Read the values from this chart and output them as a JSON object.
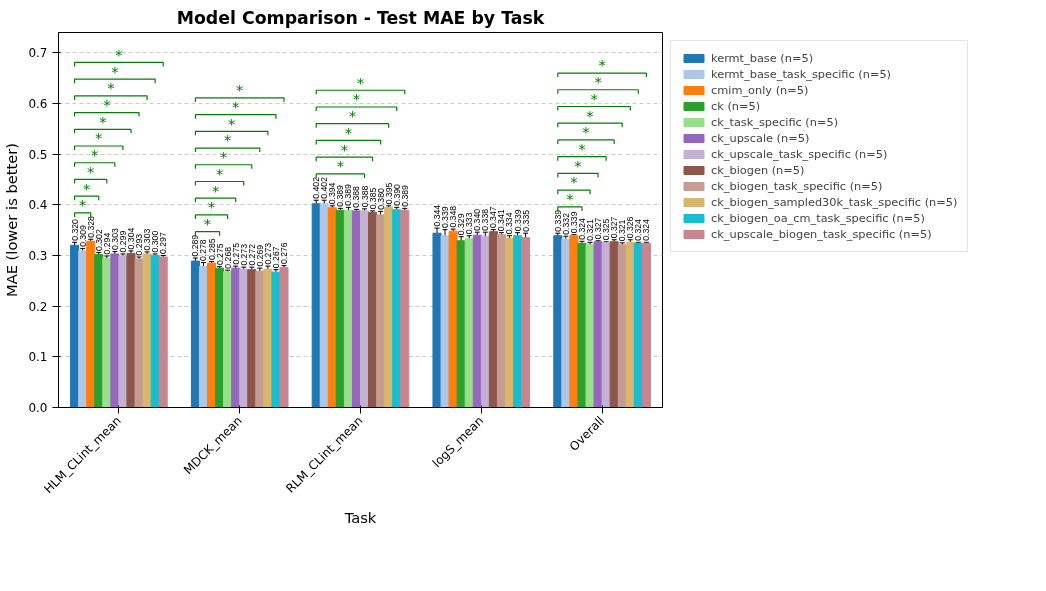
{
  "chart_data": {
    "type": "bar",
    "title": "Model Comparison - Test MAE by Task",
    "xlabel": "Task",
    "ylabel": "MAE (lower is better)",
    "categories": [
      "HLM_CLint_mean",
      "MDCK_mean",
      "RLM_CLint_mean",
      "logS_mean",
      "Overall"
    ],
    "ylim": [
      0,
      0.74
    ],
    "yticks": [
      {
        "value": 0,
        "label": "0.0"
      },
      0.1,
      0.2,
      0.3,
      0.4,
      0.5,
      0.6,
      0.7
    ],
    "grid": "y",
    "legend": "right",
    "series": [
      {
        "name": "kermt_base (n=5)",
        "color": "#1f77b4",
        "values": [
          0.32,
          0.289,
          0.402,
          0.344,
          0.339
        ],
        "value_labels": [
          "0.320",
          "0.289",
          "0.402",
          "0.344",
          "0.339"
        ],
        "errors": [
          0.006,
          0.006,
          0.007,
          0.01,
          0.005
        ]
      },
      {
        "name": "kermt_base_task_specific (n=5)",
        "color": "#aec7e8",
        "values": [
          0.309,
          0.278,
          0.402,
          0.339,
          0.332
        ],
        "value_labels": [
          "0.309",
          "0.278",
          "0.402",
          "0.339",
          "0.332"
        ],
        "errors": [
          0.005,
          0.008,
          0.007,
          0.012,
          0.006
        ]
      },
      {
        "name": "cmim_only (n=5)",
        "color": "#ff7f0e",
        "values": [
          0.328,
          0.285,
          0.394,
          0.348,
          0.339
        ],
        "value_labels": [
          "0.328",
          "0.285",
          "0.394",
          "0.348",
          "0.339"
        ],
        "errors": [
          0.004,
          0.003,
          0.004,
          0.004,
          0.002
        ]
      },
      {
        "name": "ck (n=5)",
        "color": "#2ca02c",
        "values": [
          0.302,
          0.275,
          0.389,
          0.329,
          0.324
        ],
        "value_labels": [
          "0.302",
          "0.275",
          "0.389",
          "0.329",
          "0.324"
        ],
        "errors": [
          0.004,
          0.003,
          0.004,
          0.008,
          0.004
        ]
      },
      {
        "name": "ck_task_specific (n=5)",
        "color": "#98df8a",
        "values": [
          0.294,
          0.268,
          0.389,
          0.333,
          0.321
        ],
        "value_labels": [
          "0.294",
          "0.268",
          "0.389",
          "0.333",
          "0.321"
        ],
        "errors": [
          0.005,
          0.003,
          0.006,
          0.006,
          0.005
        ]
      },
      {
        "name": "ck_upscale (n=5)",
        "color": "#9467bd",
        "values": [
          0.303,
          0.275,
          0.388,
          0.34,
          0.327
        ],
        "value_labels": [
          "0.303",
          "0.275",
          "0.388",
          "0.340",
          "0.327"
        ],
        "errors": [
          0.005,
          0.004,
          0.003,
          0.006,
          0.002
        ]
      },
      {
        "name": "ck_upscale_task_specific (n=5)",
        "color": "#c5b0d5",
        "values": [
          0.299,
          0.273,
          0.388,
          0.338,
          0.325
        ],
        "value_labels": [
          "0.299",
          "0.273",
          "0.388",
          "0.338",
          "0.325"
        ],
        "errors": [
          0.004,
          0.004,
          0.004,
          0.008,
          0.002
        ]
      },
      {
        "name": "ck_biogen (n=5)",
        "color": "#8c564b",
        "values": [
          0.304,
          0.272,
          0.385,
          0.347,
          0.327
        ],
        "value_labels": [
          "0.304",
          "0.272",
          "0.385",
          "0.347",
          "0.327"
        ],
        "errors": [
          0.005,
          0.005,
          0.003,
          0.004,
          0.004
        ]
      },
      {
        "name": "ck_biogen_task_specific (n=5)",
        "color": "#c49c94",
        "values": [
          0.293,
          0.269,
          0.38,
          0.341,
          0.321
        ],
        "value_labels": [
          "0.293",
          "0.269",
          "0.380",
          "0.341",
          "0.321"
        ],
        "errors": [
          0.004,
          0.006,
          0.007,
          0.004,
          0.004
        ]
      },
      {
        "name": "ck_biogen_sampled30k_task_specific (n=5)",
        "color": "#dbb56b",
        "values": [
          0.303,
          0.273,
          0.395,
          0.334,
          0.326
        ],
        "value_labels": [
          "0.303",
          "0.273",
          "0.395",
          "0.334",
          "0.326"
        ],
        "errors": [
          0.004,
          0.006,
          0.003,
          0.005,
          0.005
        ]
      },
      {
        "name": "ck_biogen_oa_cm_task_specific (n=5)",
        "color": "#17becf",
        "values": [
          0.3,
          0.267,
          0.39,
          0.339,
          0.324
        ],
        "value_labels": [
          "0.300",
          "0.267",
          "0.390",
          "0.339",
          "0.324"
        ],
        "errors": [
          0.003,
          0.005,
          0.005,
          0.006,
          0.002
        ]
      },
      {
        "name": "ck_upscale_biogen_task_specific (n=5)",
        "color": "#c9858f",
        "values": [
          0.297,
          0.276,
          0.389,
          0.335,
          0.324
        ],
        "value_labels": [
          "0.297",
          "0.276",
          "0.389",
          "0.335",
          "0.324"
        ],
        "errors": [
          0.003,
          0.004,
          0.004,
          0.009,
          0.002
        ]
      }
    ],
    "annotations": [
      "*",
      "*",
      "*",
      "*",
      "*",
      "*",
      "*",
      "*",
      "*",
      "*",
      "*",
      "*",
      "*",
      "*",
      "*",
      "*",
      "*",
      "*",
      "*",
      "*",
      "*",
      "*",
      "*",
      "*",
      "*",
      "*",
      "*",
      "*",
      "*",
      "*",
      "*",
      "*",
      "*",
      "*"
    ]
  }
}
